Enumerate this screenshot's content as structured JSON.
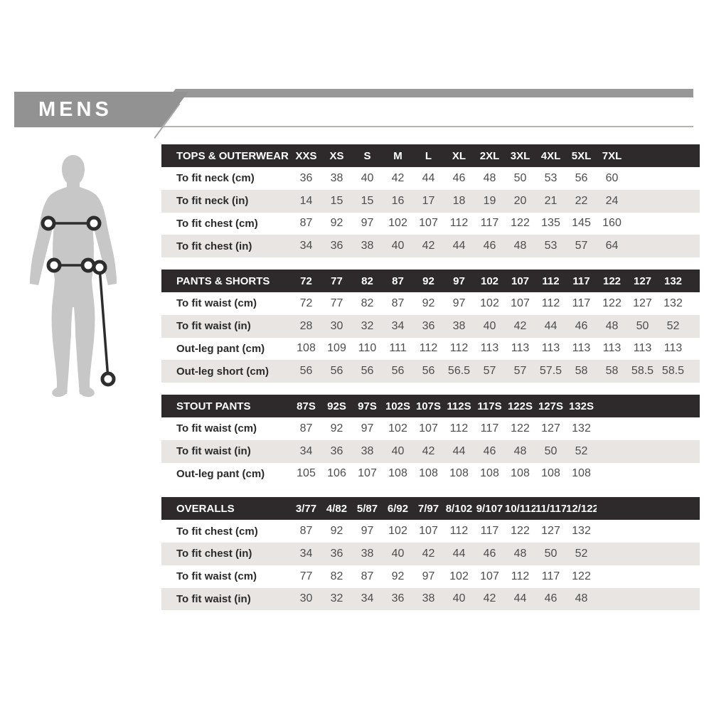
{
  "header": {
    "title": "MENS"
  },
  "colors": {
    "banner_gray": "#929292",
    "table_header_dark": "#2e2a2b",
    "row_alternate": "#e9e5e3",
    "silhouette_gray": "#c7c7c7",
    "marker_dark": "#2d2d2d"
  },
  "figure": {
    "name": "mens-body-silhouette-with-measurement-markers"
  },
  "tables": [
    {
      "title": "TOPS & OUTERWEAR",
      "columns": [
        "XXS",
        "XS",
        "S",
        "M",
        "L",
        "XL",
        "2XL",
        "3XL",
        "4XL",
        "5XL",
        "7XL"
      ],
      "rows": [
        {
          "label": "To fit neck (cm)",
          "values": [
            "36",
            "38",
            "40",
            "42",
            "44",
            "46",
            "48",
            "50",
            "53",
            "56",
            "60"
          ]
        },
        {
          "label": "To fit neck (in)",
          "values": [
            "14",
            "15",
            "15",
            "16",
            "17",
            "18",
            "19",
            "20",
            "21",
            "22",
            "24"
          ]
        },
        {
          "label": "To fit chest (cm)",
          "values": [
            "87",
            "92",
            "97",
            "102",
            "107",
            "112",
            "117",
            "122",
            "135",
            "145",
            "160"
          ]
        },
        {
          "label": "To fit chest (in)",
          "values": [
            "34",
            "36",
            "38",
            "40",
            "42",
            "44",
            "46",
            "48",
            "53",
            "57",
            "64"
          ]
        }
      ]
    },
    {
      "title": "PANTS & SHORTS",
      "columns": [
        "72",
        "77",
        "82",
        "87",
        "92",
        "97",
        "102",
        "107",
        "112",
        "117",
        "122",
        "127",
        "132"
      ],
      "rows": [
        {
          "label": "To fit waist (cm)",
          "values": [
            "72",
            "77",
            "82",
            "87",
            "92",
            "97",
            "102",
            "107",
            "112",
            "117",
            "122",
            "127",
            "132"
          ]
        },
        {
          "label": "To fit waist (in)",
          "values": [
            "28",
            "30",
            "32",
            "34",
            "36",
            "38",
            "40",
            "42",
            "44",
            "46",
            "48",
            "50",
            "52"
          ]
        },
        {
          "label": "Out-leg pant (cm)",
          "values": [
            "108",
            "109",
            "110",
            "111",
            "112",
            "112",
            "113",
            "113",
            "113",
            "113",
            "113",
            "113",
            "113"
          ]
        },
        {
          "label": "Out-leg short (cm)",
          "values": [
            "56",
            "56",
            "56",
            "56",
            "56",
            "56.5",
            "57",
            "57",
            "57.5",
            "58",
            "58",
            "58.5",
            "58.5"
          ]
        }
      ]
    },
    {
      "title": "STOUT PANTS",
      "columns": [
        "87S",
        "92S",
        "97S",
        "102S",
        "107S",
        "112S",
        "117S",
        "122S",
        "127S",
        "132S"
      ],
      "rows": [
        {
          "label": "To fit waist (cm)",
          "values": [
            "87",
            "92",
            "97",
            "102",
            "107",
            "112",
            "117",
            "122",
            "127",
            "132"
          ]
        },
        {
          "label": "To fit waist (in)",
          "values": [
            "34",
            "36",
            "38",
            "40",
            "42",
            "44",
            "46",
            "48",
            "50",
            "52"
          ]
        },
        {
          "label": "Out-leg pant (cm)",
          "values": [
            "105",
            "106",
            "107",
            "108",
            "108",
            "108",
            "108",
            "108",
            "108",
            "108"
          ]
        }
      ]
    },
    {
      "title": "OVERALLS",
      "columns": [
        "3/77",
        "4/82",
        "5/87",
        "6/92",
        "7/97",
        "8/102",
        "9/107",
        "10/112",
        "11/117",
        "12/122"
      ],
      "rows": [
        {
          "label": "To fit chest (cm)",
          "values": [
            "87",
            "92",
            "97",
            "102",
            "107",
            "112",
            "117",
            "122",
            "127",
            "132"
          ]
        },
        {
          "label": "To fit chest (in)",
          "values": [
            "34",
            "36",
            "38",
            "40",
            "42",
            "44",
            "46",
            "48",
            "50",
            "52"
          ]
        },
        {
          "label": "To fit waist (cm)",
          "values": [
            "77",
            "82",
            "87",
            "92",
            "97",
            "102",
            "107",
            "112",
            "117",
            "122"
          ]
        },
        {
          "label": "To fit waist (in)",
          "values": [
            "30",
            "32",
            "34",
            "36",
            "38",
            "40",
            "42",
            "44",
            "46",
            "48"
          ]
        }
      ]
    }
  ]
}
